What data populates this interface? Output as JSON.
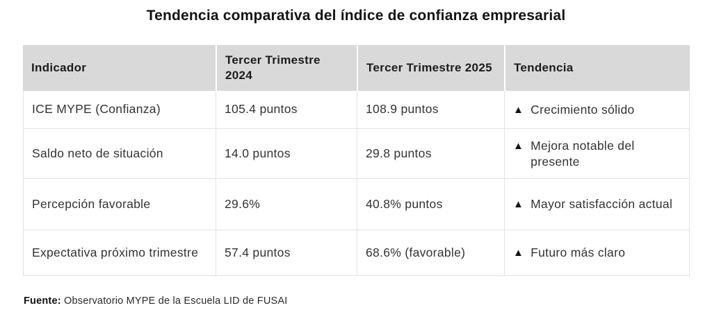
{
  "title": "Tendencia comparativa del índice de confianza empresarial",
  "icons": {
    "up_triangle": "▲"
  },
  "table": {
    "headers": [
      "Indicador",
      "Tercer Trimestre 2024",
      "Tercer Trimestre 2025",
      "Tendencia"
    ],
    "rows": [
      [
        "ICE MYPE (Confianza)",
        "105.4 puntos",
        "108.9 puntos",
        "Crecimiento sólido"
      ],
      [
        "Saldo neto de situación",
        "14.0 puntos",
        "29.8 puntos",
        "Mejora notable del presente"
      ],
      [
        "Percepción favorable",
        "29.6%",
        "40.8% puntos",
        "Mayor satisfacción actual"
      ],
      [
        "Expectativa próximo trimestre",
        "57.4 puntos",
        "68.6% (favorable)",
        "Futuro más claro"
      ]
    ]
  },
  "footer": {
    "label": "Fuente:",
    "text": "Observatorio MYPE de la Escuela LID de FUSAI"
  },
  "colors": {
    "header_bg": "#d9d9d9",
    "border": "#e3e3e3",
    "text": "#333333",
    "title_text": "#141414",
    "trend_icon": "#161616"
  },
  "chart_data": {
    "type": "table",
    "title": "Tendencia comparativa del índice de confianza empresarial",
    "columns": [
      "Indicador",
      "Tercer Trimestre 2024",
      "Tercer Trimestre 2025",
      "Tendencia"
    ],
    "rows": [
      {
        "indicador": "ICE MYPE (Confianza)",
        "tercer_trimestre_2024": "105.4 puntos",
        "tercer_trimestre_2025": "108.9 puntos",
        "tendencia": "▲ Crecimiento sólido",
        "valores": {
          "t2024": 105.4,
          "t2025": 108.9
        }
      },
      {
        "indicador": "Saldo neto de situación",
        "tercer_trimestre_2024": "14.0 puntos",
        "tercer_trimestre_2025": "29.8 puntos",
        "tendencia": "▲ Mejora notable del presente",
        "valores": {
          "t2024": 14.0,
          "t2025": 29.8
        }
      },
      {
        "indicador": "Percepción favorable",
        "tercer_trimestre_2024": "29.6%",
        "tercer_trimestre_2025": "40.8% puntos",
        "tendencia": "▲ Mayor satisfacción actual",
        "valores": {
          "t2024": 29.6,
          "t2025": 40.8
        }
      },
      {
        "indicador": "Expectativa próximo trimestre",
        "tercer_trimestre_2024": "57.4 puntos",
        "tercer_trimestre_2025": "68.6% (favorable)",
        "tendencia": "▲ Futuro más claro",
        "valores": {
          "t2024": 57.4,
          "t2025": 68.6
        }
      }
    ],
    "source": "Fuente: Observatorio MYPE de la Escuela LID de FUSAI",
    "layout": {
      "header_background": "#d9d9d9",
      "trend_marker": "black up triangle"
    }
  }
}
